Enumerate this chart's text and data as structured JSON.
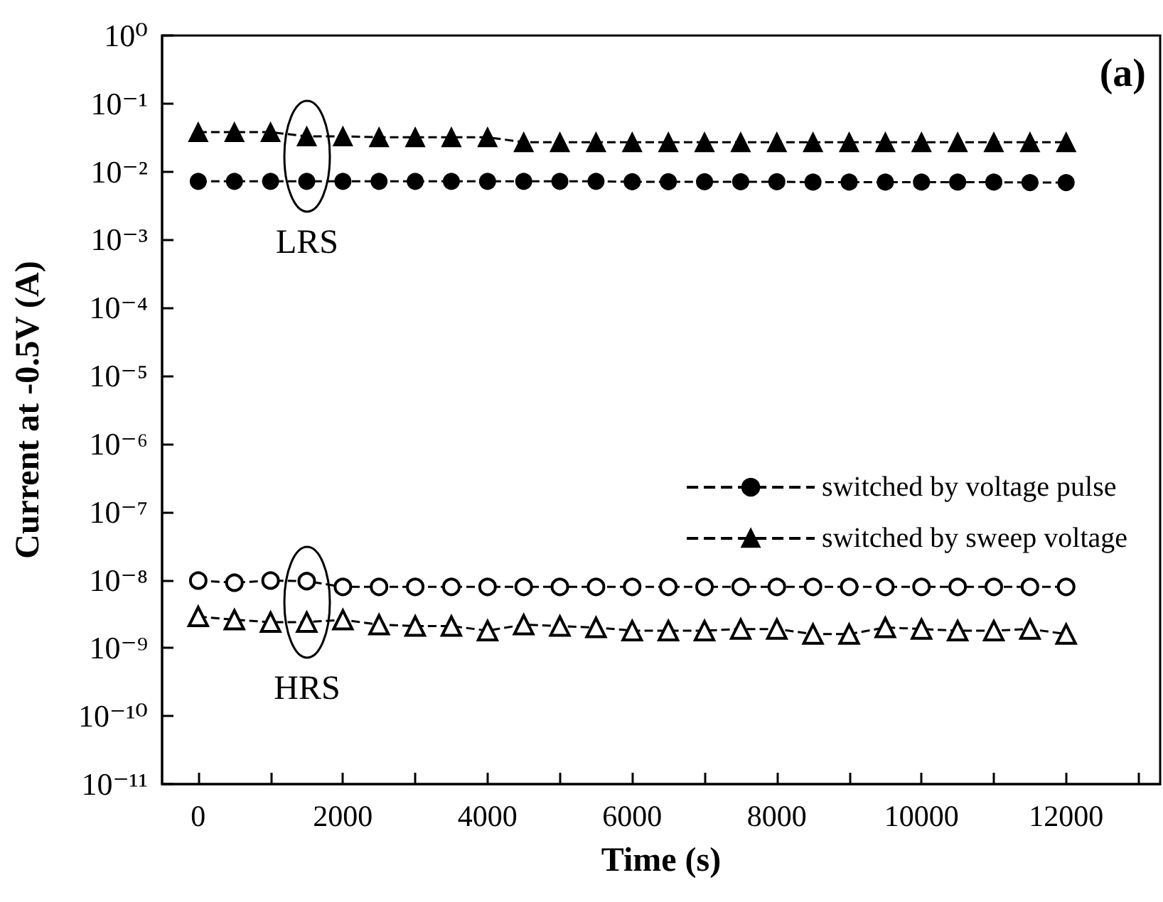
{
  "chart_data": {
    "type": "line",
    "xlabel": "Time (s)",
    "ylabel": "Current at -0.5V (A)",
    "x": [
      0,
      500,
      1000,
      1500,
      2000,
      2500,
      3000,
      3500,
      4000,
      4500,
      5000,
      5500,
      6000,
      6500,
      7000,
      7500,
      8000,
      8500,
      9000,
      9500,
      10000,
      10500,
      11000,
      11500,
      12000
    ],
    "series": [
      {
        "name": "switched by voltage pulse",
        "color": "#000000",
        "marker": "circle",
        "values": [
          0.0072,
          0.0072,
          0.0072,
          0.0072,
          0.0072,
          0.0072,
          0.0072,
          0.0072,
          0.0072,
          0.0072,
          0.0072,
          0.0072,
          0.0071,
          0.0071,
          0.0071,
          0.0071,
          0.0071,
          0.007,
          0.007,
          0.007,
          0.007,
          0.007,
          0.007,
          0.0069,
          0.0069
        ]
      },
      {
        "color": "#000000",
        "marker": "circle",
        "values": [
          9.8e-09,
          9.1e-09,
          9.8e-09,
          9.6e-09,
          7.9e-09,
          7.9e-09,
          7.9e-09,
          7.9e-09,
          7.9e-09,
          7.9e-09,
          7.9e-09,
          7.9e-09,
          7.9e-09,
          7.9e-09,
          7.9e-09,
          7.9e-09,
          7.9e-09,
          7.9e-09,
          7.9e-09,
          7.9e-09,
          7.9e-09,
          7.9e-09,
          7.9e-09,
          7.9e-09,
          7.9e-09
        ]
      },
      {
        "name": "switched by sweep voltage",
        "color": "#000000",
        "marker": "triangle",
        "values": [
          0.038,
          0.038,
          0.038,
          0.033,
          0.033,
          0.032,
          0.032,
          0.032,
          0.032,
          0.027,
          0.027,
          0.027,
          0.027,
          0.027,
          0.027,
          0.027,
          0.027,
          0.027,
          0.027,
          0.027,
          0.027,
          0.027,
          0.027,
          0.027,
          0.027
        ]
      },
      {
        "color": "#000000",
        "marker": "triangle",
        "values": [
          2.9e-09,
          2.6e-09,
          2.4e-09,
          2.4e-09,
          2.6e-09,
          2.2e-09,
          2.1e-09,
          2.1e-09,
          1.8e-09,
          2.2e-09,
          2.1e-09,
          2e-09,
          1.8e-09,
          1.8e-09,
          1.8e-09,
          1.9e-09,
          1.9e-09,
          1.6e-09,
          1.6e-09,
          2e-09,
          1.9e-09,
          1.8e-09,
          1.8e-09,
          1.9e-09,
          1.6e-09
        ]
      }
    ],
    "log": "y",
    "line_style": "dashed",
    "legend": "right",
    "grid": false,
    "xlim": [
      -500,
      13300
    ],
    "xticks": [
      0,
      {
        "value": 1000,
        "label": null
      },
      2000,
      {
        "value": 3000,
        "label": null
      },
      4000,
      {
        "value": 5000,
        "label": null
      },
      6000,
      {
        "value": 7000,
        "label": null
      },
      8000,
      {
        "value": 9000,
        "label": null
      },
      10000,
      {
        "value": 11000,
        "label": null
      },
      12000,
      {
        "value": 13000,
        "label": null
      }
    ],
    "ylim": [
      1e-11,
      1
    ],
    "yticks": [
      {
        "value": 1e-11,
        "label": "10⁻¹¹"
      },
      {
        "value": 1e-10,
        "label": "10⁻¹⁰"
      },
      {
        "value": 1e-09,
        "label": "10⁻⁹"
      },
      {
        "value": 1e-08,
        "label": "10⁻⁸"
      },
      {
        "value": 1e-07,
        "label": "10⁻⁷"
      },
      {
        "value": 1e-06,
        "label": "10⁻⁶"
      },
      {
        "value": 1e-05,
        "label": "10⁻⁵"
      },
      {
        "value": 0.0001,
        "label": "10⁻⁴"
      },
      {
        "value": 0.001,
        "label": "10⁻³"
      },
      {
        "value": 0.01,
        "label": "10⁻²"
      },
      {
        "value": 0.1,
        "label": "10⁻¹"
      },
      {
        "value": 1,
        "label": "10⁰"
      }
    ],
    "annotations": [
      "(a)",
      "LRS",
      "HRS"
    ]
  }
}
